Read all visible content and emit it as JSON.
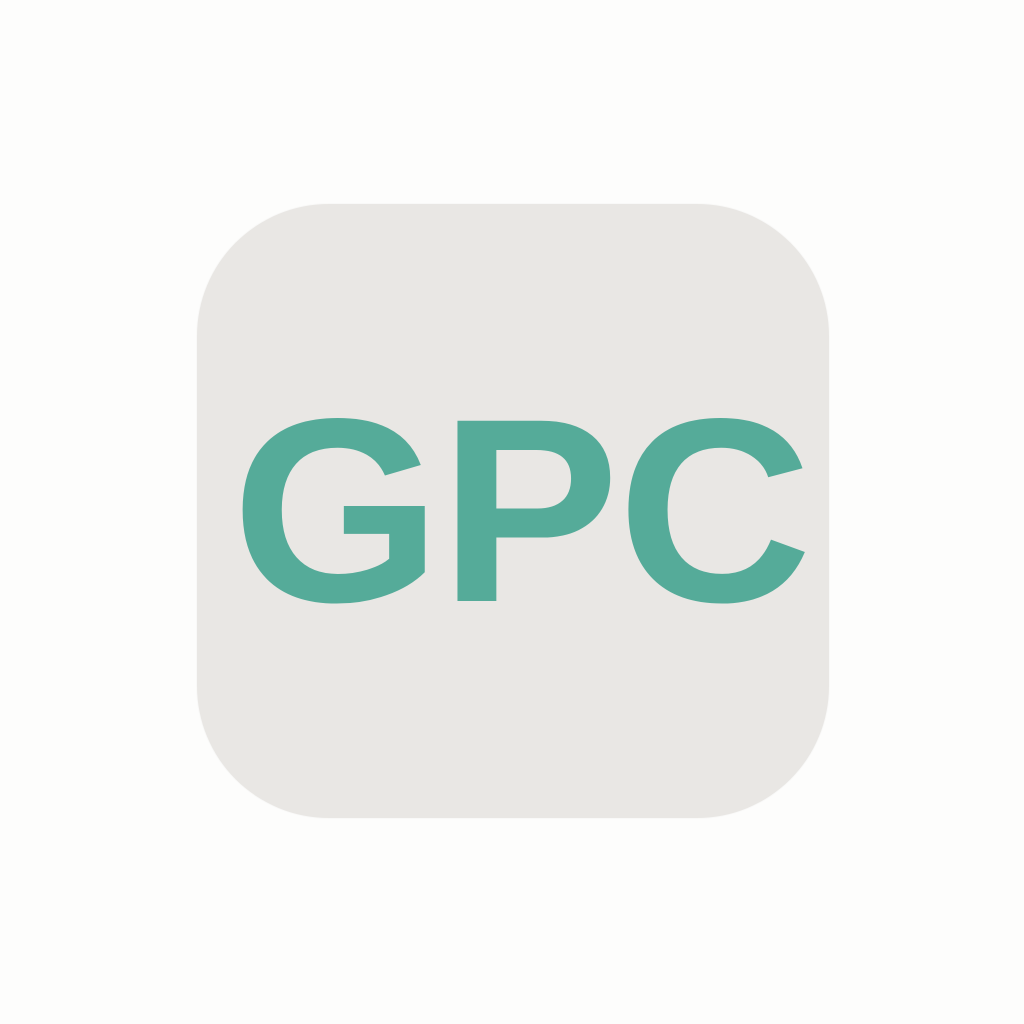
{
  "icon": {
    "label": "GPC",
    "colors": {
      "background": "#fdfdfc",
      "tile": "#e9e7e4",
      "text": "#55ab99"
    }
  }
}
